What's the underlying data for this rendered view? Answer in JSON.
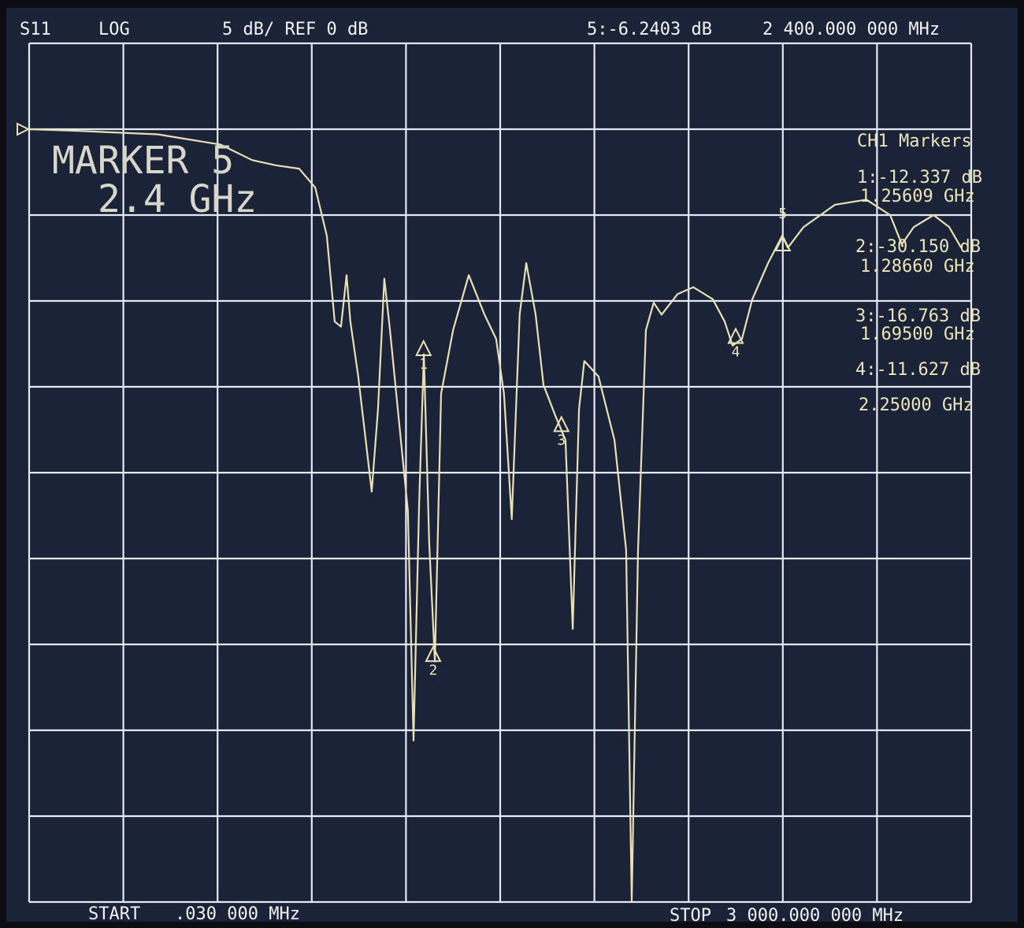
{
  "chart_data": {
    "type": "line",
    "header": [
      "S11",
      "LOG",
      "5 dB/ REF 0 dB",
      "5:-6.2403 dB",
      "2 400.000 000 MHz"
    ],
    "annotation": [
      "MARKER 5",
      "2.4 GHz"
    ],
    "marker_panel_title": "CH1 Markers",
    "marker_readouts": [
      "1:-12.337 dB",
      "1.25609 GHz",
      "2:-30.150 dB",
      "1.28660 GHz",
      "3:-16.763 dB",
      "1.69500 GHz",
      "4:-11.627 dB",
      "2.25000 GHz"
    ],
    "start_label": [
      "START",
      ".030 000 MHz"
    ],
    "stop_label": [
      "STOP",
      "3 000.000 000 MHz"
    ],
    "xlim": [
      0.03,
      3000
    ],
    "ylim": [
      -45,
      5
    ],
    "grid": true,
    "series": [
      {
        "name": "S11",
        "color": "#e8e0b4",
        "x": [
          0,
          158,
          409,
          610,
          710,
          785,
          860,
          911,
          948,
          973,
          993,
          1011,
          1023,
          1048,
          1091,
          1111,
          1131,
          1149,
          1174,
          1206,
          1224,
          1242,
          1257,
          1274,
          1292,
          1312,
          1350,
          1400,
          1450,
          1487,
          1512,
          1537,
          1562,
          1583,
          1613,
          1638,
          1676,
          1708,
          1731,
          1751,
          1768,
          1813,
          1864,
          1901,
          1919,
          1939,
          1964,
          1989,
          2014,
          2065,
          2115,
          2177,
          2215,
          2240,
          2270,
          2303,
          2353,
          2398,
          2416,
          2466,
          2566,
          2666,
          2742,
          2779,
          2817,
          2880,
          2930,
          2968
        ],
        "values": [
          0,
          -0.1,
          -0.3,
          -0.9,
          -1.8,
          -2.1,
          -2.3,
          -3.4,
          -6.2,
          -11.2,
          -11.5,
          -8.5,
          -11.2,
          -14.4,
          -21.1,
          -16.3,
          -8.7,
          -11.7,
          -16.3,
          -22.2,
          -35.6,
          -21.8,
          -13.1,
          -24.1,
          -31.0,
          -15.4,
          -11.7,
          -8.5,
          -10.8,
          -12.2,
          -15.4,
          -22.7,
          -10.8,
          -7.8,
          -10.8,
          -14.9,
          -16.7,
          -18.1,
          -29.1,
          -16.3,
          -13.5,
          -14.4,
          -18.1,
          -24.5,
          -45,
          -24.5,
          -11.7,
          -10.1,
          -10.8,
          -9.6,
          -9.2,
          -9.9,
          -11.2,
          -12.6,
          -12.2,
          -9.9,
          -7.8,
          -6.2,
          -6.9,
          -5.7,
          -4.4,
          -4.1,
          -5.0,
          -6.7,
          -5.7,
          -5.0,
          -5.7,
          -6.9
        ]
      }
    ],
    "markers": [
      {
        "label": "1",
        "x": 1256.09,
        "y": -12.337
      },
      {
        "label": "2",
        "x": 1286.6,
        "y": -30.15
      },
      {
        "label": "3",
        "x": 1695,
        "y": -16.763
      },
      {
        "label": "4",
        "x": 2250,
        "y": -11.627
      },
      {
        "label": "5",
        "x": 2400,
        "y": -6.2403
      }
    ]
  }
}
